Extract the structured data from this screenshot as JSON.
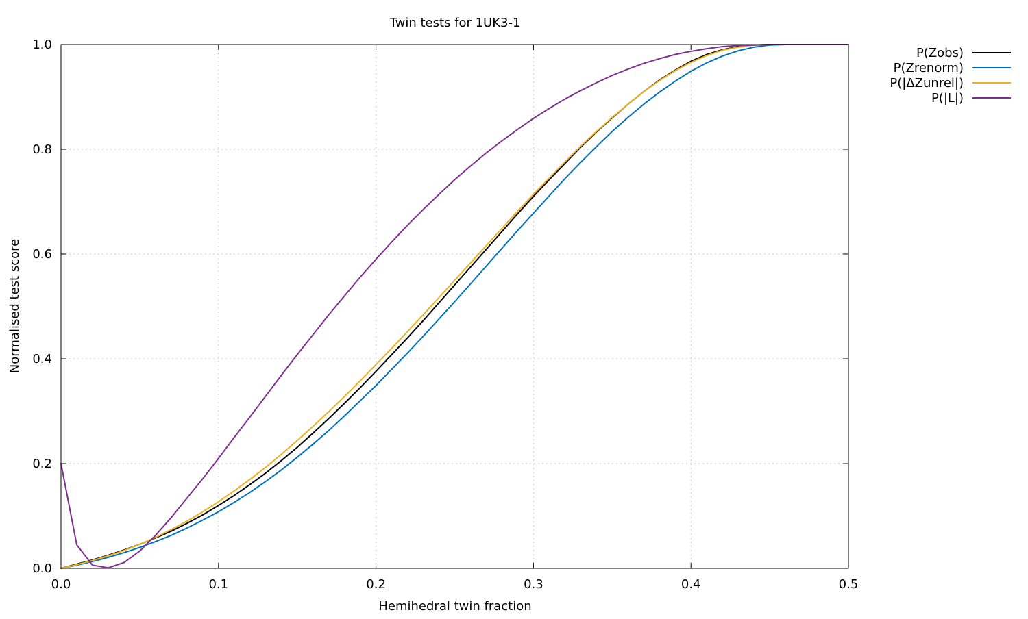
{
  "chart_data": {
    "type": "line",
    "title": "Twin tests for 1UK3-1",
    "xlabel": "Hemihedral twin fraction",
    "ylabel": "Normalised test score",
    "xlim": [
      0.0,
      0.5
    ],
    "ylim": [
      0.0,
      1.0
    ],
    "x_ticks": [
      "0.0",
      "0.1",
      "0.2",
      "0.3",
      "0.4",
      "0.5"
    ],
    "y_ticks": [
      "0.0",
      "0.2",
      "0.4",
      "0.6",
      "0.8",
      "1.0"
    ],
    "grid": true,
    "legend_position": "outside-top-right",
    "x": [
      0.0,
      0.01,
      0.02,
      0.03,
      0.04,
      0.05,
      0.06,
      0.07,
      0.08,
      0.09,
      0.1,
      0.11,
      0.12,
      0.13,
      0.14,
      0.15,
      0.16,
      0.17,
      0.18,
      0.19,
      0.2,
      0.21,
      0.22,
      0.23,
      0.24,
      0.25,
      0.26,
      0.27,
      0.28,
      0.29,
      0.3,
      0.31,
      0.32,
      0.33,
      0.34,
      0.35,
      0.36,
      0.37,
      0.38,
      0.39,
      0.4,
      0.41,
      0.42,
      0.43,
      0.44,
      0.45,
      0.46,
      0.47,
      0.48,
      0.49,
      0.5
    ],
    "series": [
      {
        "name": "P(Zobs)",
        "color": "#000000",
        "values": [
          0.0,
          0.008,
          0.016,
          0.025,
          0.035,
          0.046,
          0.058,
          0.071,
          0.086,
          0.102,
          0.12,
          0.139,
          0.16,
          0.182,
          0.206,
          0.231,
          0.258,
          0.286,
          0.315,
          0.345,
          0.376,
          0.408,
          0.44,
          0.473,
          0.507,
          0.541,
          0.575,
          0.609,
          0.643,
          0.677,
          0.71,
          0.742,
          0.773,
          0.804,
          0.833,
          0.86,
          0.886,
          0.91,
          0.932,
          0.951,
          0.968,
          0.981,
          0.99,
          0.996,
          0.999,
          1.0,
          1.0,
          1.0,
          1.0,
          1.0,
          1.0
        ]
      },
      {
        "name": "P(Zrenorm)",
        "color": "#0072bd",
        "values": [
          0.0,
          0.006,
          0.013,
          0.021,
          0.03,
          0.04,
          0.051,
          0.063,
          0.077,
          0.092,
          0.108,
          0.126,
          0.145,
          0.166,
          0.188,
          0.212,
          0.237,
          0.263,
          0.291,
          0.32,
          0.349,
          0.38,
          0.411,
          0.443,
          0.476,
          0.509,
          0.543,
          0.577,
          0.611,
          0.645,
          0.678,
          0.711,
          0.744,
          0.775,
          0.805,
          0.834,
          0.861,
          0.886,
          0.909,
          0.93,
          0.949,
          0.965,
          0.978,
          0.988,
          0.995,
          0.999,
          1.0,
          1.0,
          1.0,
          1.0,
          1.0
        ]
      },
      {
        "name": "P(|ΔZunrel|)",
        "color": "#edb120",
        "values": [
          0.0,
          0.007,
          0.015,
          0.024,
          0.034,
          0.046,
          0.059,
          0.074,
          0.09,
          0.108,
          0.127,
          0.148,
          0.17,
          0.193,
          0.218,
          0.244,
          0.271,
          0.299,
          0.328,
          0.358,
          0.389,
          0.42,
          0.452,
          0.484,
          0.517,
          0.55,
          0.583,
          0.616,
          0.649,
          0.682,
          0.714,
          0.745,
          0.776,
          0.806,
          0.834,
          0.861,
          0.886,
          0.91,
          0.931,
          0.95,
          0.966,
          0.979,
          0.989,
          0.995,
          0.999,
          1.0,
          1.0,
          1.0,
          1.0,
          1.0,
          1.0
        ]
      },
      {
        "name": "P(|L|)",
        "color": "#7e2f8e",
        "values": [
          0.2,
          0.045,
          0.006,
          0.001,
          0.011,
          0.033,
          0.063,
          0.097,
          0.134,
          0.171,
          0.21,
          0.25,
          0.289,
          0.329,
          0.369,
          0.408,
          0.446,
          0.484,
          0.52,
          0.556,
          0.59,
          0.623,
          0.655,
          0.685,
          0.714,
          0.742,
          0.768,
          0.793,
          0.816,
          0.838,
          0.859,
          0.878,
          0.896,
          0.912,
          0.927,
          0.941,
          0.953,
          0.964,
          0.973,
          0.981,
          0.987,
          0.992,
          0.996,
          0.998,
          0.999,
          1.0,
          1.0,
          1.0,
          1.0,
          1.0,
          1.0
        ]
      }
    ]
  }
}
